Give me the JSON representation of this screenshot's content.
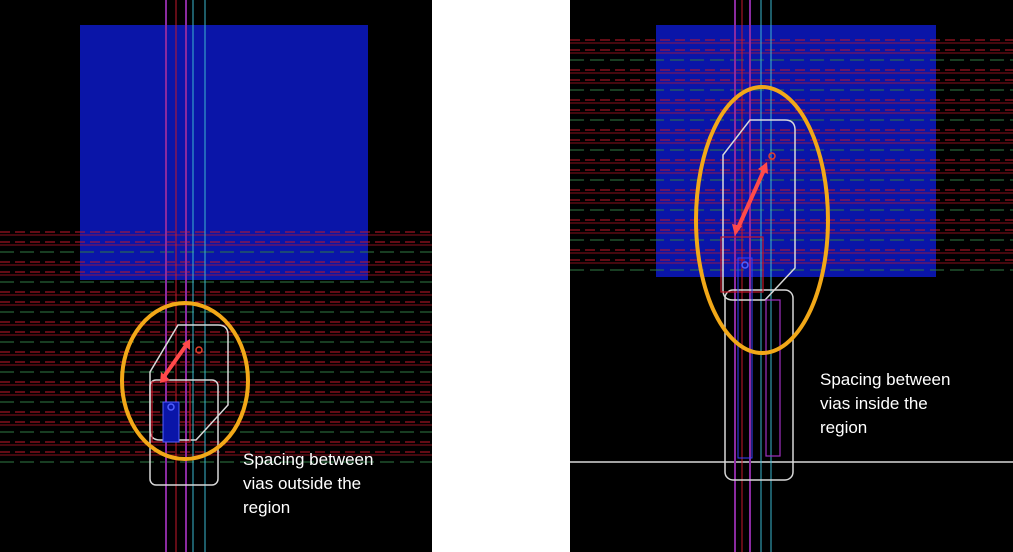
{
  "panels": [
    {
      "caption": "Spacing between\nvias outside the\nregion"
    },
    {
      "caption": "Spacing between\nvias inside the\nregion"
    }
  ],
  "colors": {
    "background": "#000000",
    "region_fill": "#0a15a8",
    "track_red": "#c4182a",
    "track_green": "#2f7a44",
    "wire_outline": "#d8d8d8",
    "highlight_ellipse": "#f2a818",
    "spacing_arrow": "#ff4a4a",
    "via": "#e0402a",
    "vertical_wire": "#8a2aa0",
    "cyan_line": "#3ab8d0"
  }
}
